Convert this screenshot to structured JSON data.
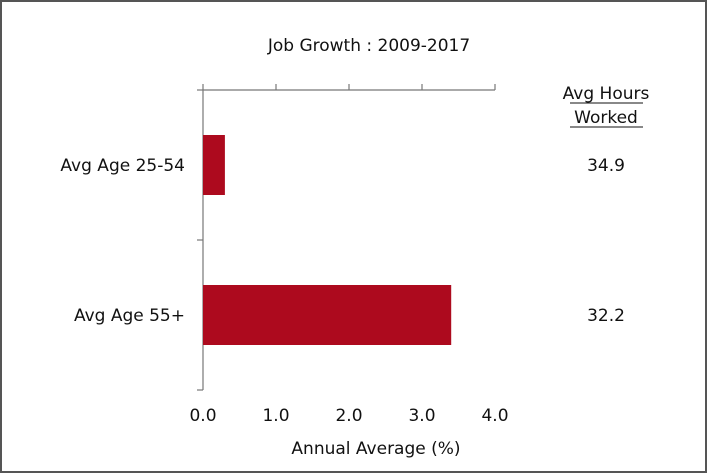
{
  "chart_data": {
    "type": "bar",
    "orientation": "horizontal",
    "title": "Job Growth : 2009-2017",
    "xlabel": "Annual Average (%)",
    "ylabel": "",
    "categories": [
      "Avg Age 25-54",
      "Avg Age 55+"
    ],
    "values": [
      0.3,
      3.4
    ],
    "xlim": [
      0,
      4
    ],
    "xticks": [
      "0.0",
      "1.0",
      "2.0",
      "3.0",
      "4.0"
    ],
    "grid": false,
    "bar_color": "#ad0a1e",
    "side_table": {
      "header_line1": "Avg Hours",
      "header_line2": "Worked",
      "values": [
        "34.9",
        "32.2"
      ]
    }
  }
}
